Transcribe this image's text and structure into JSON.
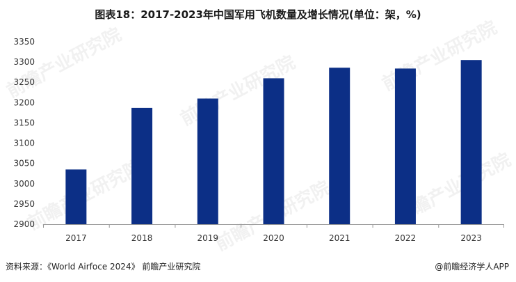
{
  "title": "图表18：2017-2023年中国军用飞机数量及增长情况(单位：架，%)",
  "watermark_text": "前瞻产业研究院",
  "footer": {
    "source": "资料来源：《World Airfoce 2024》 前瞻产业研究院",
    "brand": "@前瞻经济学人APP"
  },
  "colors": {
    "bar": "#0c2f86",
    "axis": "#999999",
    "text": "#333333"
  },
  "chart_data": {
    "type": "bar",
    "categories": [
      "2017",
      "2018",
      "2019",
      "2020",
      "2021",
      "2022",
      "2023"
    ],
    "values": [
      3035,
      3187,
      3210,
      3260,
      3286,
      3284,
      3305
    ],
    "ylim": [
      2900,
      3350
    ],
    "yticks": [
      2900,
      2950,
      3000,
      3050,
      3100,
      3150,
      3200,
      3250,
      3300,
      3350
    ],
    "title": "",
    "xlabel": "",
    "ylabel": ""
  }
}
